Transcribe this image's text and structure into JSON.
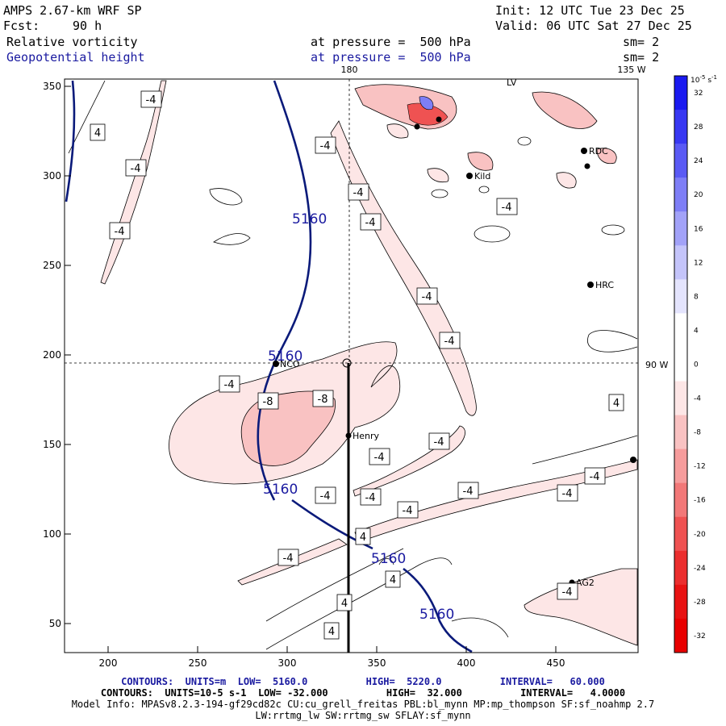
{
  "header": {
    "model": "AMPS 2.67-km WRF SP",
    "init": "Init: 12 UTC Tue 23 Dec 25",
    "fcst_label": "Fcst:",
    "fcst_value": "90 h",
    "valid": "Valid: 06 UTC Sat 27 Dec 25",
    "field1": "Relative vorticity",
    "field1_level": "at pressure =  500 hPa",
    "field1_sm": "sm= 2",
    "field2": "Geopotential height",
    "field2_level": "at pressure =  500 hPa",
    "field2_sm": "sm= 2"
  },
  "map": {
    "lon_top_180": "180",
    "lon_top_135w": "135 W",
    "lon_right_90w": "90 W",
    "x_ticks": [
      "200",
      "250",
      "300",
      "350",
      "400",
      "450"
    ],
    "y_ticks": [
      "350",
      "300",
      "250",
      "200",
      "150",
      "100",
      "50"
    ],
    "stations": [
      {
        "id": "NCO",
        "label": "NCO"
      },
      {
        "id": "Henry",
        "label": "Henry"
      },
      {
        "id": "HRC",
        "label": "HRC"
      },
      {
        "id": "AG2",
        "label": "AG2"
      },
      {
        "id": "LV",
        "label": "LV"
      },
      {
        "id": "RDC",
        "label": "RDC"
      },
      {
        "id": "Kild",
        "label": "Kild"
      }
    ],
    "height_labels": [
      "5160",
      "5160",
      "5160",
      "5160",
      "5160"
    ],
    "vort_labels": [
      "-4",
      "-4",
      "-4",
      "-4",
      "-4",
      "-4",
      "-4",
      "-4",
      "-4",
      "-4",
      "-4",
      "-4",
      "-4",
      "-4",
      "-4",
      "-4",
      "-4",
      "-4",
      "-4",
      "-4",
      "-8",
      "-8",
      "4",
      "4",
      "4",
      "4",
      "4",
      "4"
    ]
  },
  "colorbar": {
    "unit_base": "10",
    "unit_exp": "-5",
    "unit_suffix": "s",
    "unit_suffix_exp": "-1",
    "levels": [
      {
        "label": "32",
        "color": "#1a1af0"
      },
      {
        "label": "28",
        "color": "#3838f2"
      },
      {
        "label": "24",
        "color": "#5a5af4"
      },
      {
        "label": "20",
        "color": "#7e7ef6"
      },
      {
        "label": "16",
        "color": "#a2a2f8"
      },
      {
        "label": "12",
        "color": "#c4c4fa"
      },
      {
        "label": "8",
        "color": "#e4e4fd"
      },
      {
        "label": "4",
        "color": "#ffffff"
      },
      {
        "label": "0",
        "color": "#ffffff"
      },
      {
        "label": "-4",
        "color": "#fde6e6"
      },
      {
        "label": "-8",
        "color": "#f9c2c2"
      },
      {
        "label": "-12",
        "color": "#f69c9c"
      },
      {
        "label": "-16",
        "color": "#f27878"
      },
      {
        "label": "-20",
        "color": "#ef5252"
      },
      {
        "label": "-24",
        "color": "#eb2e2e"
      },
      {
        "label": "-28",
        "color": "#e81212"
      },
      {
        "label": "-32",
        "color": "#e80000"
      }
    ]
  },
  "footer": {
    "line1": "CONTOURS:  UNITS=m  LOW=  5160.0          HIGH=  5220.0          INTERVAL=   60.000",
    "line2": "CONTOURS:  UNITS=10-5 s-1  LOW= -32.000          HIGH=  32.000          INTERVAL=   4.0000",
    "line3": "Model Info: MPASv8.2.3-194-gf29cd82c CU:cu_grell_freitas PBL:bl_mynn MP:mp_thompson SF:sf_noahmp 2.7",
    "line4": "LW:rrtmg_lw SW:rrtmg_sw SFLAY:sf_mynn"
  }
}
